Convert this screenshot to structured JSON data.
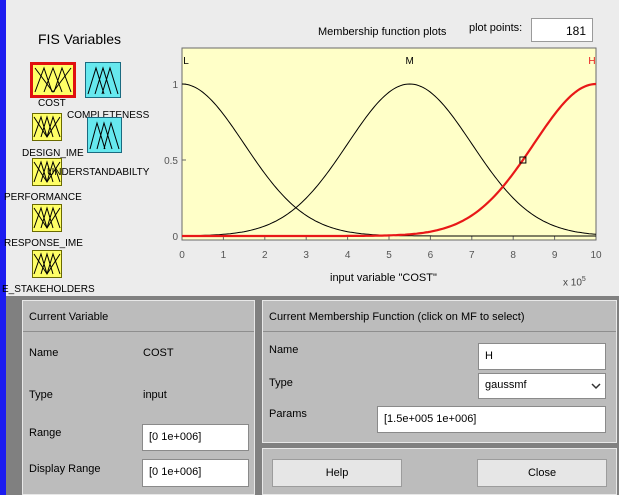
{
  "fis_variables": {
    "title": "FIS Variables",
    "inputs": [
      {
        "name": "COST",
        "selected": true
      },
      {
        "name": "DESIGN_IME",
        "selected": false
      },
      {
        "name": "PERFORMANCE",
        "selected": false
      },
      {
        "name": "RESPONSE_IME",
        "selected": false
      },
      {
        "name": "E_STAKEHOLDERS",
        "selected": false
      }
    ],
    "outputs": [
      {
        "name": "COMPLETENESS"
      },
      {
        "name": "UNDERSTANDABILTY"
      }
    ]
  },
  "plot": {
    "title": "Membership function plots",
    "plot_points_label": "plot points:",
    "plot_points_value": "181",
    "x_axis_title": "input variable \"COST\"",
    "x_exponent": "x 10",
    "x_exponent_power": "5",
    "x_ticks": [
      "0",
      "1",
      "2",
      "3",
      "4",
      "5",
      "6",
      "7",
      "8",
      "9",
      "10"
    ],
    "y_ticks": [
      "0",
      "0.5",
      "1"
    ],
    "mf_labels": [
      "L",
      "M",
      "H"
    ],
    "bg_color": "#ffffc8",
    "selected_color": "#e81818"
  },
  "chart_data": {
    "type": "line",
    "x_range": [
      0,
      10
    ],
    "y_range": [
      0,
      1
    ],
    "x_scale_note": "x 10^5",
    "series": [
      {
        "name": "L",
        "mf": "gaussmf",
        "sigma": 1.5,
        "center": 0,
        "selected": false
      },
      {
        "name": "M",
        "mf": "gaussmf",
        "sigma": 1.5,
        "center": 5.5,
        "selected": false
      },
      {
        "name": "H",
        "mf": "gaussmf",
        "sigma": 1.5,
        "center": 10,
        "selected": true
      }
    ]
  },
  "current_variable": {
    "header": "Current Variable",
    "name_label": "Name",
    "name_value": "COST",
    "type_label": "Type",
    "type_value": "input",
    "range_label": "Range",
    "range_value": "[0 1e+006]",
    "display_range_label": "Display Range",
    "display_range_value": "[0 1e+006]"
  },
  "current_mf": {
    "header": "Current Membership Function (click on MF to select)",
    "name_label": "Name",
    "name_value": "H",
    "type_label": "Type",
    "type_value": "gaussmf",
    "params_label": "Params",
    "params_value": "[1.5e+005 1e+006]"
  },
  "buttons": {
    "help": "Help",
    "close": "Close"
  }
}
